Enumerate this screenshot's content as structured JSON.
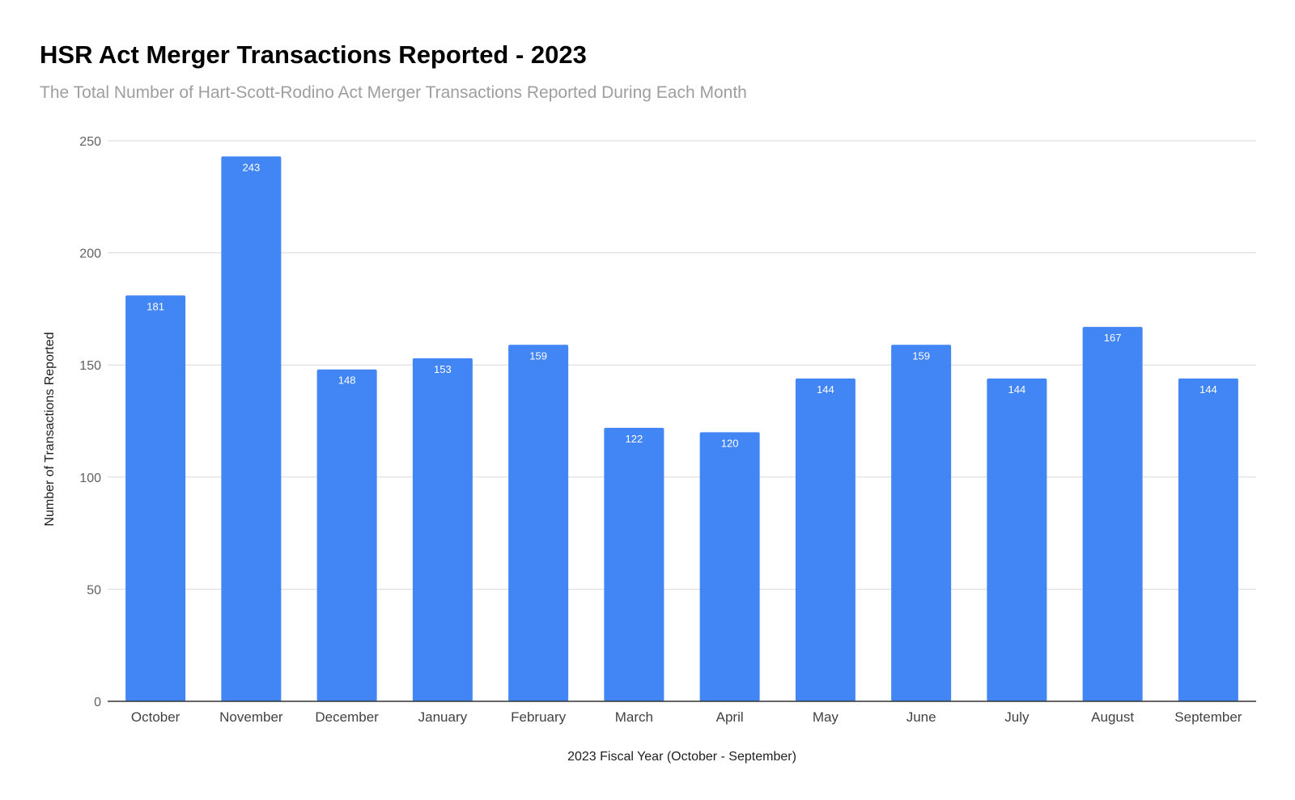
{
  "title": "HSR Act Merger Transactions Reported - 2023",
  "subtitle": "The Total Number of Hart-Scott-Rodino Act Merger Transactions Reported During Each Month",
  "chart_data": {
    "type": "bar",
    "title": "HSR Act Merger Transactions Reported - 2023",
    "subtitle": "The Total Number of Hart-Scott-Rodino Act Merger Transactions Reported During Each Month",
    "xlabel": "2023 Fiscal Year (October - September)",
    "ylabel": "Number of Transactions Reported",
    "categories": [
      "October",
      "November",
      "December",
      "January",
      "February",
      "March",
      "April",
      "May",
      "June",
      "July",
      "August",
      "September"
    ],
    "values": [
      181,
      243,
      148,
      153,
      159,
      122,
      120,
      144,
      159,
      144,
      167,
      144
    ],
    "ylim": [
      0,
      250
    ],
    "yticks": [
      0,
      50,
      100,
      150,
      200,
      250
    ],
    "grid": true,
    "legend": "none",
    "data_labels": true,
    "colors": {
      "bar": "#4285f4",
      "grid": "#d9d9d9",
      "axis": "#333333",
      "data_label": "#ffffff"
    }
  }
}
